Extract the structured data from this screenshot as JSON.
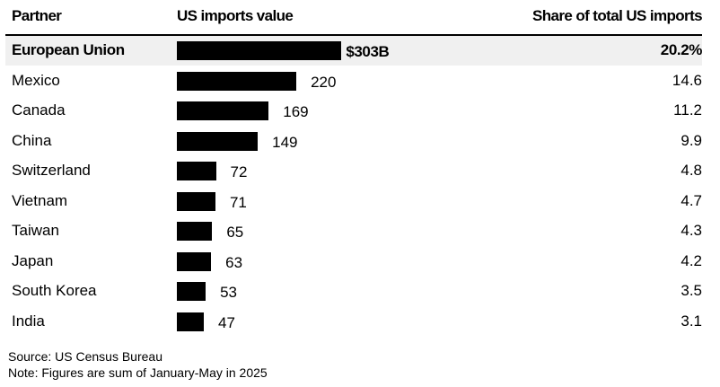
{
  "chart_data": {
    "type": "bar",
    "orientation": "horizontal",
    "headers": {
      "partner": "Partner",
      "value": "US imports value",
      "share": "Share of total US imports"
    },
    "categories": [
      "European Union",
      "Mexico",
      "Canada",
      "China",
      "Switzerland",
      "Vietnam",
      "Taiwan",
      "Japan",
      "South Korea",
      "India"
    ],
    "values": [
      303,
      220,
      169,
      149,
      72,
      71,
      65,
      63,
      53,
      47
    ],
    "value_labels": [
      "$303B",
      "220",
      "169",
      "149",
      "72",
      "71",
      "65",
      "63",
      "53",
      "47"
    ],
    "shares": [
      "20.2%",
      "14.6",
      "11.2",
      "9.9",
      "4.8",
      "4.7",
      "4.3",
      "4.2",
      "3.5",
      "3.1"
    ],
    "highlighted": "European Union",
    "bar_color": "#000000",
    "highlight_color": "#f0f0f0",
    "grid": false
  },
  "footer": {
    "source": "Source: US Census Bureau",
    "note": "Note: Figures are sum of January-May in 2025"
  }
}
